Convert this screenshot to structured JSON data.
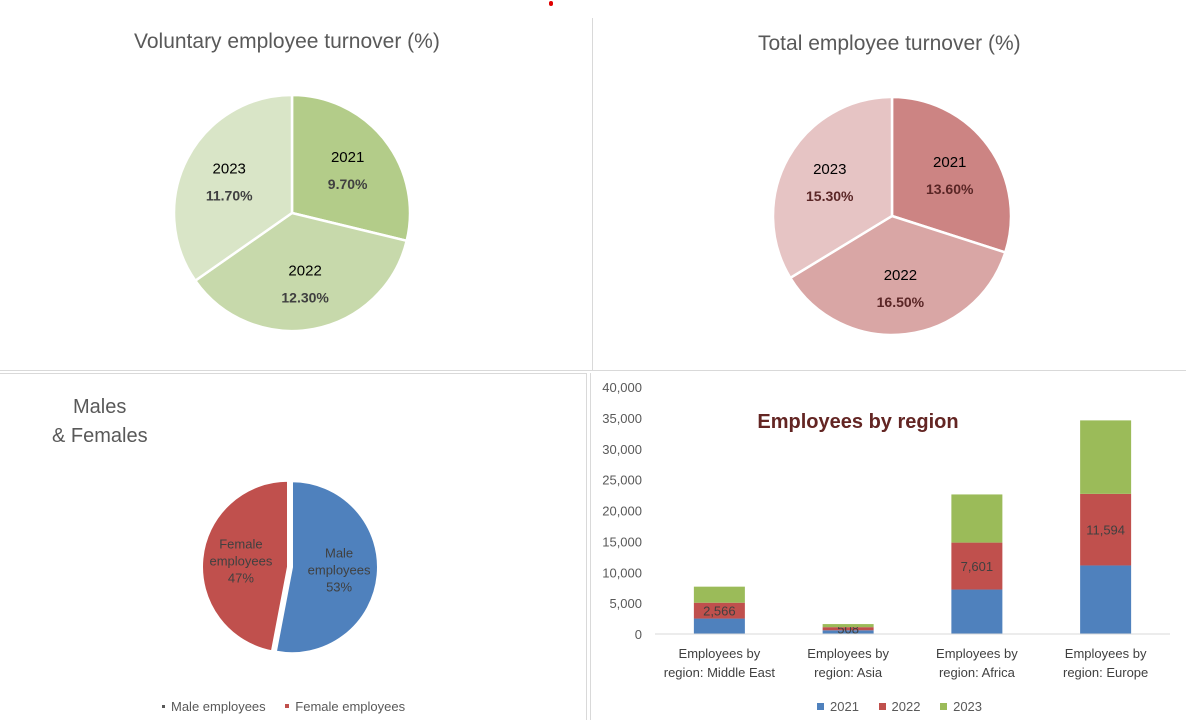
{
  "charts": {
    "voluntary": {
      "title": "Voluntary employee turnover (%)",
      "colors": [
        "#b3cc89",
        "#c7d9ab",
        "#d9e5c7"
      ]
    },
    "total": {
      "title": "Total employee turnover (%)",
      "colors": [
        "#cc8483",
        "#d9a6a5",
        "#e6c4c4"
      ]
    },
    "gender": {
      "title_line1": "Males",
      "title_line2": "& Females",
      "colors": [
        "#4f81bd",
        "#c0504d"
      ],
      "legend": [
        "Male employees",
        "Female employees"
      ]
    },
    "region": {
      "title": "Employees by region",
      "colors": [
        "#4f81bd",
        "#c0504d",
        "#9bbb59"
      ]
    }
  },
  "chart_data": [
    {
      "type": "pie",
      "title": "Voluntary employee turnover (%)",
      "categories": [
        "2021",
        "2022",
        "2023"
      ],
      "values": [
        9.7,
        12.3,
        11.7
      ],
      "labels": [
        "9.70%",
        "12.30%",
        "11.70%"
      ]
    },
    {
      "type": "pie",
      "title": "Total employee turnover (%)",
      "categories": [
        "2021",
        "2022",
        "2023"
      ],
      "values": [
        13.6,
        16.5,
        15.3
      ],
      "labels": [
        "13.60%",
        "16.50%",
        "15.30%"
      ]
    },
    {
      "type": "pie",
      "title": "Males & Females",
      "categories": [
        "Male employees",
        "Female employees"
      ],
      "values": [
        53,
        47
      ],
      "labels": [
        "Male employees",
        "Female employees"
      ],
      "percent_labels": [
        "53%",
        "47%"
      ],
      "legend": [
        "Male employees",
        "Female employees"
      ],
      "legend_position": "bottom"
    },
    {
      "type": "bar",
      "stacked": true,
      "title": "Employees by region",
      "categories": [
        [
          "Employees by",
          "region: Middle East"
        ],
        [
          "Employees by",
          "region: Asia"
        ],
        [
          "Employees by",
          "region: Africa"
        ],
        [
          "Employees by",
          "region: Europe"
        ]
      ],
      "series": [
        {
          "name": "2021",
          "values": [
            2500,
            600,
            7200,
            11100
          ]
        },
        {
          "name": "2022",
          "values": [
            2566,
            508,
            7601,
            11594
          ]
        },
        {
          "name": "2023",
          "values": [
            2600,
            500,
            7800,
            11900
          ]
        }
      ],
      "data_labels": [
        "2,566",
        "508",
        "7,601",
        "11,594"
      ],
      "ylim": [
        0,
        40000
      ],
      "yticks": [
        0,
        5000,
        10000,
        15000,
        20000,
        25000,
        30000,
        35000,
        40000
      ],
      "ytick_labels": [
        "0",
        "5,000",
        "10,000",
        "15,000",
        "20,000",
        "25,000",
        "30,000",
        "35,000",
        "40,000"
      ],
      "legend": [
        "2021",
        "2022",
        "2023"
      ],
      "legend_position": "bottom",
      "grid": false
    }
  ]
}
